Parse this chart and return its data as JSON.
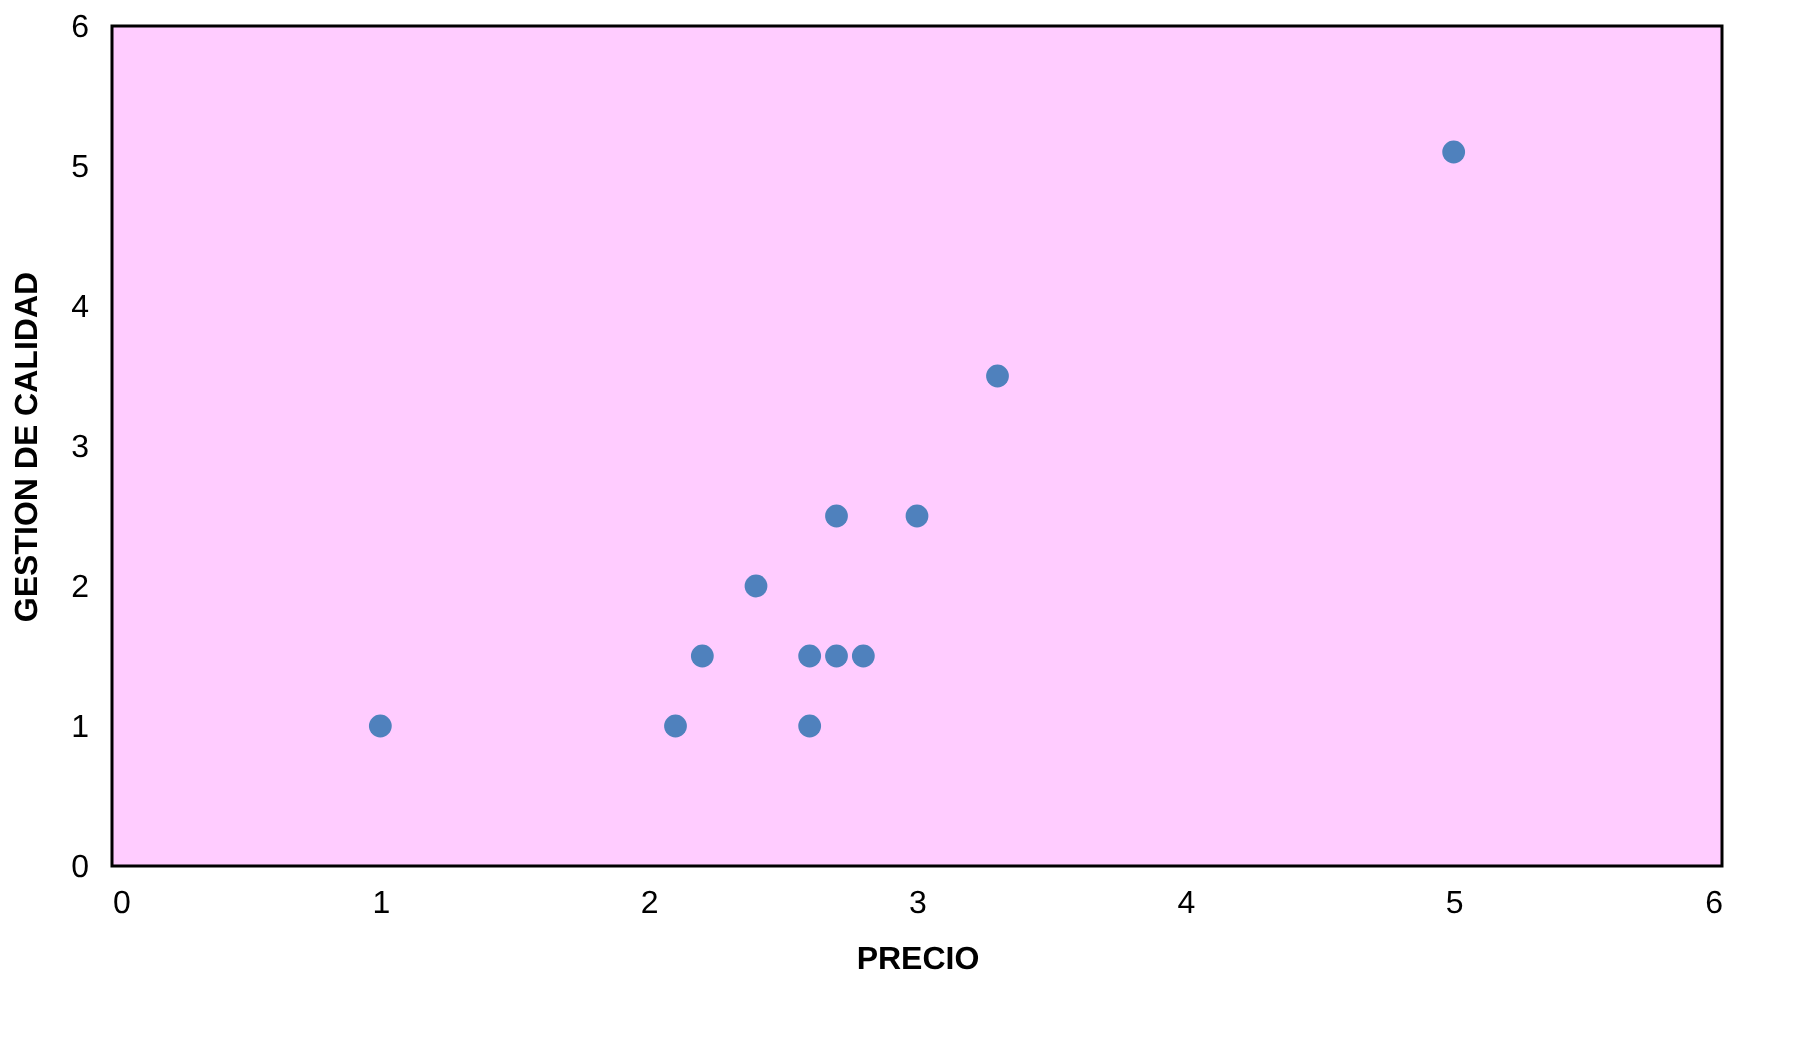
{
  "chart_data": {
    "type": "scatter",
    "xlabel": "PRECIO",
    "ylabel": "GESTION DE CALIDAD",
    "x": [
      1,
      2.1,
      2.6,
      2.2,
      2.6,
      2.7,
      2.8,
      2.4,
      2.7,
      3,
      3.3,
      5
    ],
    "values": [
      1,
      1,
      1,
      1.5,
      1.5,
      1.5,
      1.5,
      2,
      2.5,
      2.5,
      3.5,
      5.1
    ],
    "color": "#4f81bd",
    "marker": "circle",
    "xlim": [
      0,
      6
    ],
    "ylim": [
      0,
      6
    ],
    "xticks": [
      0,
      1,
      2,
      3,
      4,
      5,
      6
    ],
    "yticks": [
      0,
      1,
      2,
      3,
      4,
      5,
      6
    ],
    "grid": false,
    "legend": false
  }
}
